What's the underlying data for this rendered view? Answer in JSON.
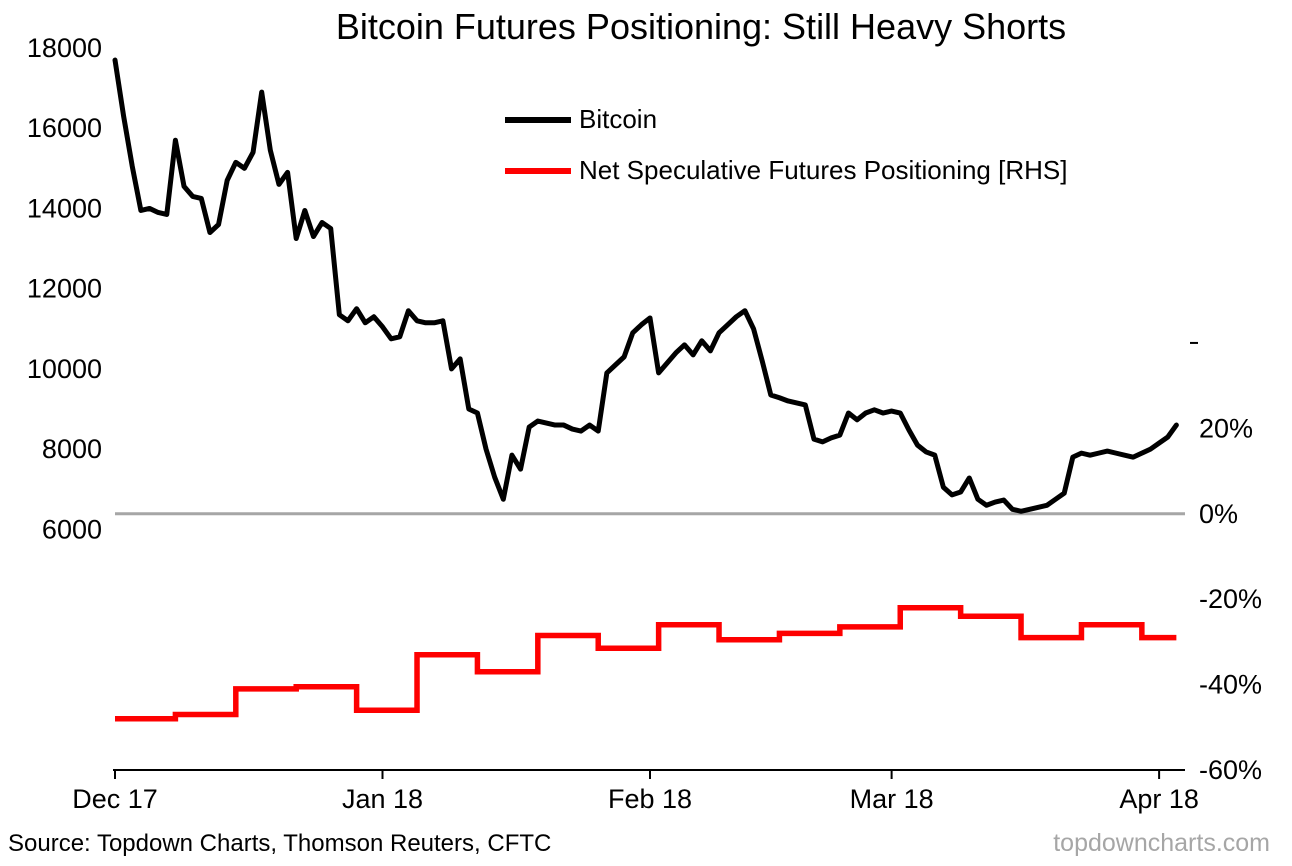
{
  "title": "Bitcoin Futures Positioning: Still Heavy Shorts",
  "legend": [
    {
      "label": "Bitcoin",
      "color": "#000000"
    },
    {
      "label": "Net Speculative Futures Positioning [RHS]",
      "color": "#fe0000"
    }
  ],
  "footer": {
    "source": "Source: Topdown Charts, Thomson Reuters, CFTC",
    "watermark": "topdowncharts.com"
  },
  "colors": {
    "bitcoin_line": "#000000",
    "positioning_line": "#fe0000",
    "zero_line": "#a6a6a6",
    "axis": "#000000",
    "watermark": "#a6a6a6"
  },
  "chart_data": {
    "type": "line",
    "title": "Bitcoin Futures Positioning: Still Heavy Shorts",
    "x_axis": {
      "domain": [
        0,
        124
      ],
      "tick_days": [
        0,
        31,
        62,
        90,
        121
      ],
      "tick_labels": [
        "Dec 17",
        "Jan 18",
        "Feb 18",
        "Mar 18",
        "Apr 18"
      ]
    },
    "left_axis": {
      "domain": [
        0,
        18100
      ],
      "ticks": [
        6000,
        8000,
        10000,
        12000,
        14000,
        16000,
        18000
      ]
    },
    "right_axis": {
      "domain": [
        -60,
        110
      ],
      "ticks": [
        20,
        0,
        -20,
        -40,
        -60
      ],
      "tick_labels": [
        "20%",
        "0%",
        "-20%",
        "-40%",
        "-60%"
      ],
      "minor_tick": 40
    },
    "zero_line": {
      "axis": "right",
      "value": 0,
      "color": "#a6a6a6"
    },
    "series": [
      {
        "name": "Bitcoin",
        "axis": "left",
        "style": "line",
        "color": "#000000",
        "start_day": 0,
        "values": [
          17700,
          16300,
          15050,
          13950,
          14000,
          13900,
          13850,
          15700,
          14550,
          14300,
          14250,
          13400,
          13600,
          14700,
          15150,
          15000,
          15400,
          16900,
          15450,
          14600,
          14900,
          13250,
          13950,
          13300,
          13650,
          13500,
          11350,
          11200,
          11500,
          11150,
          11300,
          11050,
          10750,
          10800,
          11450,
          11200,
          11150,
          11150,
          11200,
          10000,
          10250,
          9000,
          8900,
          8000,
          7300,
          6750,
          7850,
          7500,
          8550,
          8700,
          8650,
          8600,
          8600,
          8500,
          8450,
          8600,
          8450,
          9900,
          10100,
          10300,
          10900,
          11100,
          11270,
          9900,
          10150,
          10400,
          10600,
          10350,
          10700,
          10450,
          10900,
          11100,
          11300,
          11450,
          11000,
          10200,
          9350,
          9280,
          9200,
          9150,
          9100,
          8250,
          8180,
          8280,
          8350,
          8900,
          8730,
          8900,
          8980,
          8900,
          8950,
          8900,
          8480,
          8100,
          7930,
          7850,
          7050,
          6860,
          6930,
          7280,
          6750,
          6600,
          6680,
          6730,
          6500,
          6450,
          6500,
          6550,
          6600,
          6750,
          6900,
          7800,
          7900,
          7850,
          7900,
          7950,
          7900,
          7850,
          7800,
          7900,
          8000,
          8150,
          8300,
          8600
        ]
      },
      {
        "name": "Net Speculative Futures Positioning [RHS]",
        "axis": "right",
        "style": "step",
        "color": "#fe0000",
        "week_start_days": [
          0,
          7,
          14,
          21,
          28,
          35,
          42,
          49,
          56,
          63,
          70,
          77,
          84,
          91,
          98,
          105,
          112,
          119
        ],
        "end_day": 123,
        "values": [
          -48,
          -47,
          -41,
          -40.5,
          -46,
          -33,
          -37,
          -28.5,
          -31.5,
          -26,
          -29.5,
          -28,
          -26.5,
          -22,
          -24,
          -29,
          -26,
          -29
        ]
      }
    ]
  }
}
